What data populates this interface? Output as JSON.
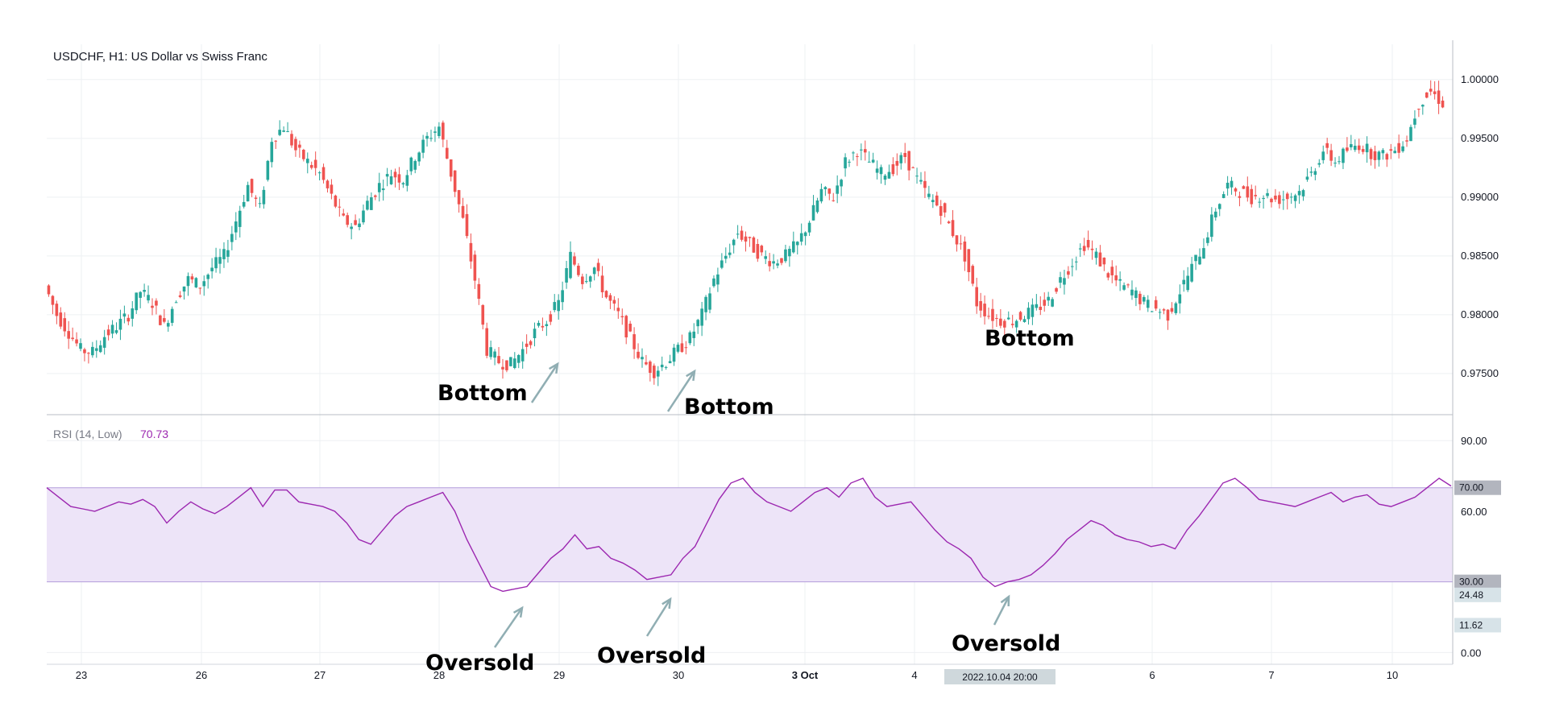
{
  "chart_data": [
    {
      "type": "candlestick",
      "title": "USDCHF, H1: US Dollar vs Swiss Franc",
      "y_axis": {
        "range": [
          0.9715,
          1.003
        ],
        "ticks": [
          "1.00000",
          "0.99500",
          "0.99000",
          "0.98500",
          "0.98000",
          "0.97500"
        ],
        "tick_values": [
          1.0,
          0.995,
          0.99,
          0.985,
          0.98,
          0.975
        ]
      },
      "x_axis": {
        "ticks": [
          "23",
          "26",
          "27",
          "28",
          "29",
          "30",
          "3 Oct",
          "4",
          "6",
          "7",
          "10"
        ],
        "highlight": "2022.10.04 20:00"
      },
      "price_path": [
        [
          0,
          0.9825
        ],
        [
          1,
          0.98
        ],
        [
          2,
          0.9785
        ],
        [
          3,
          0.977
        ],
        [
          4,
          0.9768
        ],
        [
          5,
          0.9782
        ],
        [
          6,
          0.979
        ],
        [
          7,
          0.98
        ],
        [
          8,
          0.982
        ],
        [
          9,
          0.981
        ],
        [
          10,
          0.979
        ],
        [
          11,
          0.9815
        ],
        [
          12,
          0.983
        ],
        [
          13,
          0.9825
        ],
        [
          14,
          0.984
        ],
        [
          15,
          0.985
        ],
        [
          16,
          0.988
        ],
        [
          17,
          0.991
        ],
        [
          18,
          0.989
        ],
        [
          19,
          0.995
        ],
        [
          20,
          0.996
        ],
        [
          21,
          0.994
        ],
        [
          22,
          0.993
        ],
        [
          23,
          0.992
        ],
        [
          24,
          0.99
        ],
        [
          25,
          0.988
        ],
        [
          26,
          0.9875
        ],
        [
          27,
          0.9895
        ],
        [
          28,
          0.991
        ],
        [
          29,
          0.992
        ],
        [
          30,
          0.9915
        ],
        [
          31,
          0.9935
        ],
        [
          32,
          0.995
        ],
        [
          33,
          0.996
        ],
        [
          34,
          0.992
        ],
        [
          35,
          0.988
        ],
        [
          36,
          0.983
        ],
        [
          37,
          0.977
        ],
        [
          38,
          0.976
        ],
        [
          39,
          0.9758
        ],
        [
          40,
          0.977
        ],
        [
          41,
          0.9785
        ],
        [
          42,
          0.9795
        ],
        [
          43,
          0.981
        ],
        [
          44,
          0.985
        ],
        [
          45,
          0.983
        ],
        [
          46,
          0.984
        ],
        [
          47,
          0.9815
        ],
        [
          48,
          0.98
        ],
        [
          49,
          0.978
        ],
        [
          50,
          0.976
        ],
        [
          51,
          0.9752
        ],
        [
          52,
          0.976
        ],
        [
          53,
          0.977
        ],
        [
          54,
          0.978
        ],
        [
          55,
          0.98
        ],
        [
          56,
          0.983
        ],
        [
          57,
          0.985
        ],
        [
          58,
          0.987
        ],
        [
          59,
          0.986
        ],
        [
          60,
          0.985
        ],
        [
          61,
          0.9845
        ],
        [
          62,
          0.985
        ],
        [
          63,
          0.986
        ],
        [
          64,
          0.988
        ],
        [
          65,
          0.9905
        ],
        [
          66,
          0.99
        ],
        [
          67,
          0.993
        ],
        [
          68,
          0.994
        ],
        [
          69,
          0.993
        ],
        [
          70,
          0.992
        ],
        [
          71,
          0.9925
        ],
        [
          72,
          0.9935
        ],
        [
          73,
          0.9915
        ],
        [
          74,
          0.99
        ],
        [
          75,
          0.989
        ],
        [
          76,
          0.987
        ],
        [
          77,
          0.985
        ],
        [
          78,
          0.981
        ],
        [
          79,
          0.98
        ],
        [
          80,
          0.9795
        ],
        [
          81,
          0.9795
        ],
        [
          82,
          0.98
        ],
        [
          83,
          0.9805
        ],
        [
          84,
          0.9812
        ],
        [
          85,
          0.983
        ],
        [
          86,
          0.9845
        ],
        [
          87,
          0.986
        ],
        [
          88,
          0.985
        ],
        [
          89,
          0.9835
        ],
        [
          90,
          0.9825
        ],
        [
          91,
          0.982
        ],
        [
          92,
          0.981
        ],
        [
          93,
          0.9805
        ],
        [
          94,
          0.98
        ],
        [
          95,
          0.982
        ],
        [
          96,
          0.984
        ],
        [
          97,
          0.986
        ],
        [
          98,
          0.989
        ],
        [
          99,
          0.991
        ],
        [
          100,
          0.9905
        ],
        [
          101,
          0.99
        ],
        [
          102,
          0.9902
        ],
        [
          103,
          0.9898
        ],
        [
          104,
          0.99
        ],
        [
          105,
          0.9905
        ],
        [
          106,
          0.992
        ],
        [
          107,
          0.994
        ],
        [
          108,
          0.993
        ],
        [
          109,
          0.994
        ],
        [
          110,
          0.9945
        ],
        [
          111,
          0.9938
        ],
        [
          112,
          0.9935
        ],
        [
          113,
          0.994
        ],
        [
          114,
          0.995
        ],
        [
          115,
          0.998
        ],
        [
          116,
          0.999
        ],
        [
          117,
          0.998
        ]
      ],
      "annotations": [
        "Bottom",
        "Bottom",
        "Bottom"
      ]
    },
    {
      "type": "line",
      "title": "RSI (14, Low)",
      "current_value": "70.73",
      "y_axis": {
        "range": [
          -5,
          100
        ],
        "ticks": [
          "90.00",
          "60.00",
          "0.00"
        ],
        "tick_values": [
          90,
          60,
          0
        ]
      },
      "band": {
        "upper": 70,
        "lower": 30,
        "upper_label": "70.00",
        "lower_label": "30.00"
      },
      "price_labels": [
        "24.48",
        "11.62"
      ],
      "series": [
        {
          "name": "RSI",
          "color": "#9c27b0",
          "values": [
            70,
            66,
            62,
            61,
            60,
            62,
            64,
            63,
            65,
            62,
            55,
            60,
            64,
            61,
            59,
            62,
            66,
            70,
            62,
            69,
            69,
            64,
            63,
            62,
            60,
            55,
            48,
            46,
            52,
            58,
            62,
            64,
            66,
            68,
            60,
            48,
            38,
            28,
            26,
            27,
            28,
            34,
            40,
            44,
            50,
            44,
            45,
            40,
            38,
            35,
            31,
            32,
            33,
            40,
            45,
            55,
            65,
            72,
            74,
            68,
            64,
            62,
            60,
            64,
            68,
            70,
            66,
            72,
            74,
            66,
            62,
            63,
            64,
            58,
            52,
            47,
            44,
            40,
            32,
            28,
            30,
            31,
            33,
            37,
            42,
            48,
            52,
            56,
            54,
            50,
            48,
            47,
            45,
            46,
            44,
            52,
            58,
            65,
            72,
            74,
            70,
            65,
            64,
            63,
            62,
            64,
            66,
            68,
            64,
            66,
            67,
            63,
            62,
            64,
            66,
            70,
            74,
            70.73
          ]
        }
      ],
      "annotations": [
        "Oversold",
        "Oversold",
        "Oversold"
      ]
    }
  ],
  "colors": {
    "up": "#26a69a",
    "down": "#ef5350",
    "rsi": "#9c27b0",
    "band": "#ede4f8",
    "grid": "#eef0f3",
    "annotation_arrow": "#90aeb3"
  },
  "tags": {
    "r70": "70.00",
    "r30": "30.00",
    "r2448": "24.48",
    "r1162": "11.62",
    "date": "2022.10.04 20:00"
  }
}
